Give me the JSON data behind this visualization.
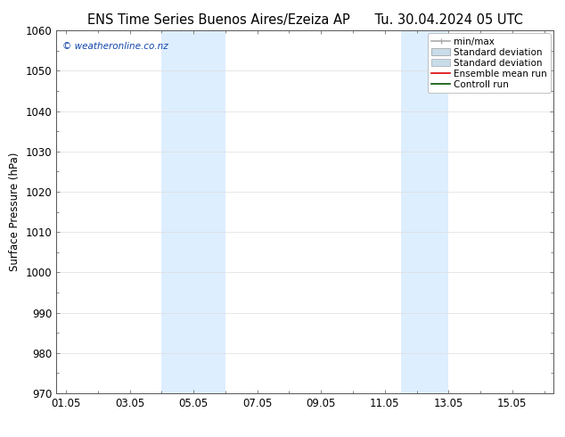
{
  "title_left": "ENS Time Series Buenos Aires/Ezeiza AP",
  "title_right": "Tu. 30.04.2024 05 UTC",
  "ylabel": "Surface Pressure (hPa)",
  "ylim": [
    970,
    1060
  ],
  "yticks": [
    970,
    980,
    990,
    1000,
    1010,
    1020,
    1030,
    1040,
    1050,
    1060
  ],
  "xtick_labels": [
    "01.05",
    "03.05",
    "05.05",
    "07.05",
    "09.05",
    "11.05",
    "13.05",
    "15.05"
  ],
  "xtick_positions": [
    0,
    2,
    4,
    6,
    8,
    10,
    12,
    14
  ],
  "xlim": [
    -0.3,
    15.3
  ],
  "shaded_regions": [
    {
      "xmin": 3.0,
      "xmax": 5.0,
      "color": "#ddeeff"
    },
    {
      "xmin": 10.5,
      "xmax": 12.0,
      "color": "#ddeeff"
    }
  ],
  "background_color": "#ffffff",
  "plot_bg_color": "#ffffff",
  "watermark_text": "© weatheronline.co.nz",
  "watermark_color": "#1144aa",
  "legend_items": [
    {
      "label": "min/max",
      "color": "#aaaaaa",
      "lw": 1.2
    },
    {
      "label": "Standard deviation",
      "color": "#c8dcea",
      "lw": 7
    },
    {
      "label": "Ensemble mean run",
      "color": "#dd0000",
      "lw": 1.2
    },
    {
      "label": "Controll run",
      "color": "#005500",
      "lw": 1.2
    }
  ],
  "title_fontsize": 10.5,
  "axis_label_fontsize": 8.5,
  "tick_fontsize": 8.5,
  "watermark_fontsize": 7.5,
  "legend_fontsize": 7.5
}
